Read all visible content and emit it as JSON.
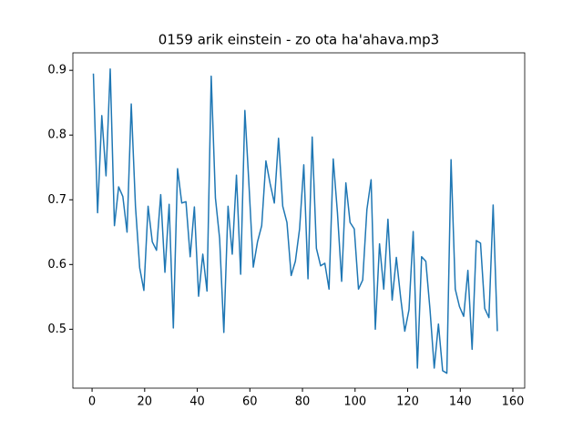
{
  "chart_data": {
    "type": "line",
    "title": "0159 arik einstein - zo ota ha'ahava.mp3",
    "color": "#1f77b4",
    "x": [
      0.5,
      2.1,
      3.7,
      5.3,
      6.9,
      8.5,
      10.1,
      11.7,
      13.3,
      14.9,
      16.5,
      18.1,
      19.7,
      21.3,
      22.9,
      24.5,
      26.1,
      27.7,
      29.3,
      30.9,
      32.5,
      34.1,
      35.7,
      37.3,
      38.9,
      40.5,
      42.1,
      43.7,
      45.3,
      46.9,
      48.5,
      50.1,
      51.7,
      53.3,
      54.9,
      56.5,
      58.1,
      59.7,
      61.3,
      62.9,
      64.5,
      66.1,
      67.7,
      69.3,
      70.9,
      72.5,
      74.1,
      75.7,
      77.3,
      78.9,
      80.5,
      82.1,
      83.7,
      85.3,
      86.9,
      88.5,
      90.1,
      91.7,
      93.3,
      94.9,
      96.5,
      98.1,
      99.7,
      101.3,
      102.9,
      104.5,
      106.1,
      107.7,
      109.3,
      110.9,
      112.5,
      114.1,
      115.7,
      117.3,
      118.9,
      120.5,
      122.1,
      123.7,
      125.3,
      126.9,
      128.5,
      130.1,
      131.7,
      133.3,
      134.9,
      136.5,
      138.1,
      139.7,
      141.3,
      142.9,
      144.5,
      146.1,
      147.7,
      149.3,
      150.9,
      152.5,
      154.1
    ],
    "values": [
      0.895,
      0.68,
      0.83,
      0.737,
      0.902,
      0.66,
      0.72,
      0.705,
      0.65,
      0.848,
      0.69,
      0.595,
      0.56,
      0.69,
      0.635,
      0.622,
      0.708,
      0.588,
      0.693,
      0.502,
      0.748,
      0.695,
      0.697,
      0.612,
      0.689,
      0.551,
      0.616,
      0.559,
      0.891,
      0.703,
      0.64,
      0.495,
      0.69,
      0.616,
      0.738,
      0.585,
      0.838,
      0.72,
      0.596,
      0.635,
      0.66,
      0.76,
      0.725,
      0.695,
      0.795,
      0.69,
      0.665,
      0.583,
      0.605,
      0.655,
      0.754,
      0.578,
      0.797,
      0.625,
      0.598,
      0.602,
      0.562,
      0.763,
      0.68,
      0.574,
      0.726,
      0.665,
      0.655,
      0.562,
      0.576,
      0.685,
      0.731,
      0.5,
      0.632,
      0.562,
      0.67,
      0.545,
      0.611,
      0.55,
      0.497,
      0.53,
      0.651,
      0.44,
      0.612,
      0.605,
      0.53,
      0.44,
      0.508,
      0.436,
      0.432,
      0.762,
      0.562,
      0.535,
      0.52,
      0.591,
      0.469,
      0.637,
      0.633,
      0.532,
      0.518,
      0.692,
      0.497
    ],
    "xlim": [
      -7.3,
      164.5
    ],
    "xticks": [
      0,
      20,
      40,
      60,
      80,
      100,
      120,
      140,
      160
    ],
    "ylim": [
      0.409,
      0.927
    ],
    "yticks": [
      0.5,
      0.6,
      0.7,
      0.8,
      0.9
    ],
    "grid": false
  }
}
